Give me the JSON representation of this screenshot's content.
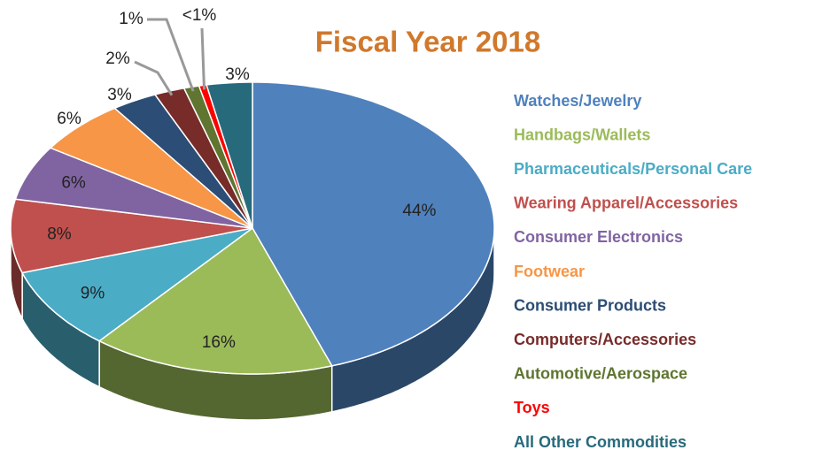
{
  "chart_data": {
    "type": "pie",
    "title": "Fiscal Year 2018",
    "categories": [
      "Watches/Jewelry",
      "Handbags/Wallets",
      "Pharmaceuticals/Personal Care",
      "Wearing Apparel/Accessories",
      "Consumer Electronics",
      "Footwear",
      "Consumer Products",
      "Computers/Accessories",
      "Automotive/Aerospace",
      "Toys",
      "All Other Commodities"
    ],
    "values": [
      44,
      16,
      9,
      8,
      6,
      6,
      3,
      2,
      1,
      0.5,
      3
    ],
    "value_labels": [
      "44%",
      "16%",
      "9%",
      "8%",
      "6%",
      "6%",
      "3%",
      "2%",
      "1%",
      "<1%",
      "3%"
    ],
    "colors": [
      "#4f81bd",
      "#9bbb59",
      "#4bacc6",
      "#c0504d",
      "#8064a2",
      "#f79646",
      "#2c4d75",
      "#772c2a",
      "#5f7530",
      "#ff0000",
      "#276a7c"
    ]
  }
}
